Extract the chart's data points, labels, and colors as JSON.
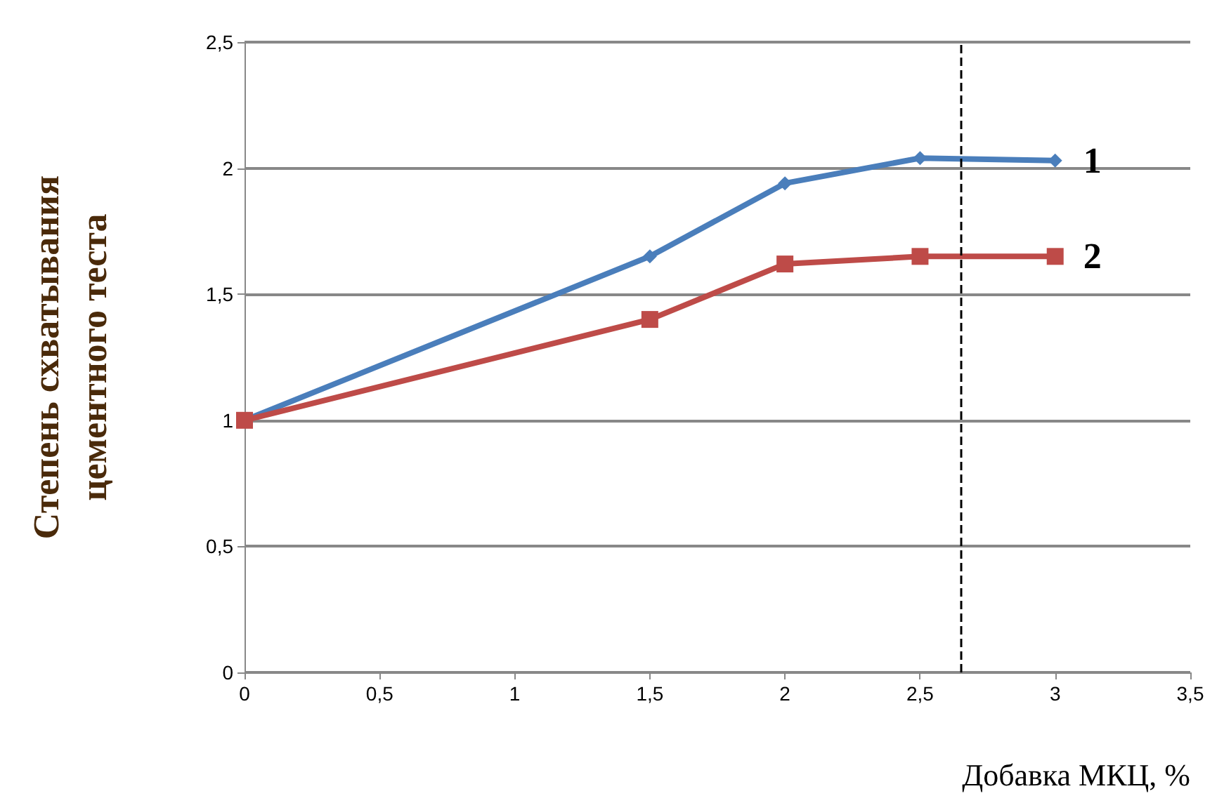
{
  "chart_data": {
    "type": "line",
    "xlabel": "Добавка МКЦ, %",
    "ylabel": "Степень схватывания\nцементного теста",
    "xlim": [
      0,
      3.5
    ],
    "xticks": [
      0,
      {
        "value": 0.5,
        "label": "0,5"
      },
      1,
      {
        "value": 1.5,
        "label": "1,5"
      },
      2,
      {
        "value": 2.5,
        "label": "2,5"
      },
      3,
      {
        "value": 3.5,
        "label": "3,5"
      }
    ],
    "ylim": [
      0,
      2.5
    ],
    "yticks": [
      0,
      {
        "value": 0.5,
        "label": "0,5"
      },
      1,
      {
        "value": 1.5,
        "label": "1,5"
      },
      2,
      {
        "value": 2.5,
        "label": "2,5"
      }
    ],
    "grid": "y",
    "legend": false,
    "line_style": "solid",
    "series": [
      {
        "name": "1",
        "color": "#4a7ebb",
        "marker": "diamond",
        "x": [
          0,
          1.5,
          2,
          2.5,
          3
        ],
        "values": [
          1,
          1.65,
          1.94,
          2.04,
          2.03
        ]
      },
      {
        "name": "2",
        "color": "#be4b48",
        "marker": "square",
        "x": [
          0,
          1.5,
          2,
          2.5,
          3
        ],
        "values": [
          1,
          1.4,
          1.62,
          1.65,
          1.65
        ]
      }
    ],
    "ref_lines": [
      {
        "axis": "x",
        "value": 2.65,
        "color": "#000000",
        "line_style": "dashed"
      }
    ]
  }
}
